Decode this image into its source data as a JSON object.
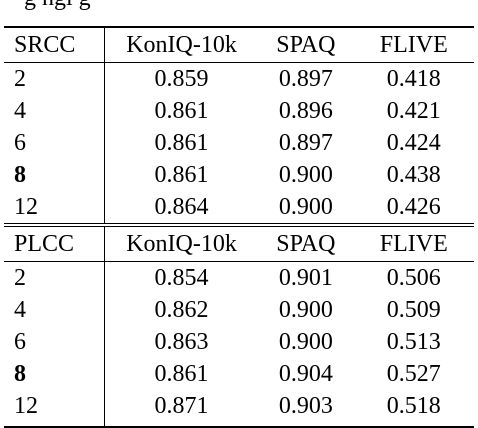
{
  "caption_tail": "g  ngi g",
  "tables": [
    {
      "metric": "SRCC",
      "columns": [
        "KonIQ-10k",
        "SPAQ",
        "FLIVE"
      ],
      "rows": [
        {
          "label": "2",
          "bold": false,
          "values": [
            "0.859",
            "0.897",
            "0.418"
          ]
        },
        {
          "label": "4",
          "bold": false,
          "values": [
            "0.861",
            "0.896",
            "0.421"
          ]
        },
        {
          "label": "6",
          "bold": false,
          "values": [
            "0.861",
            "0.897",
            "0.424"
          ]
        },
        {
          "label": "8",
          "bold": true,
          "values": [
            "0.861",
            "0.900",
            "0.438"
          ]
        },
        {
          "label": "12",
          "bold": false,
          "values": [
            "0.864",
            "0.900",
            "0.426"
          ]
        }
      ]
    },
    {
      "metric": "PLCC",
      "columns": [
        "KonIQ-10k",
        "SPAQ",
        "FLIVE"
      ],
      "rows": [
        {
          "label": "2",
          "bold": false,
          "values": [
            "0.854",
            "0.901",
            "0.506"
          ]
        },
        {
          "label": "4",
          "bold": false,
          "values": [
            "0.862",
            "0.900",
            "0.509"
          ]
        },
        {
          "label": "6",
          "bold": false,
          "values": [
            "0.863",
            "0.900",
            "0.513"
          ]
        },
        {
          "label": "8",
          "bold": true,
          "values": [
            "0.861",
            "0.904",
            "0.527"
          ]
        },
        {
          "label": "12",
          "bold": false,
          "values": [
            "0.871",
            "0.903",
            "0.518"
          ]
        }
      ]
    }
  ]
}
